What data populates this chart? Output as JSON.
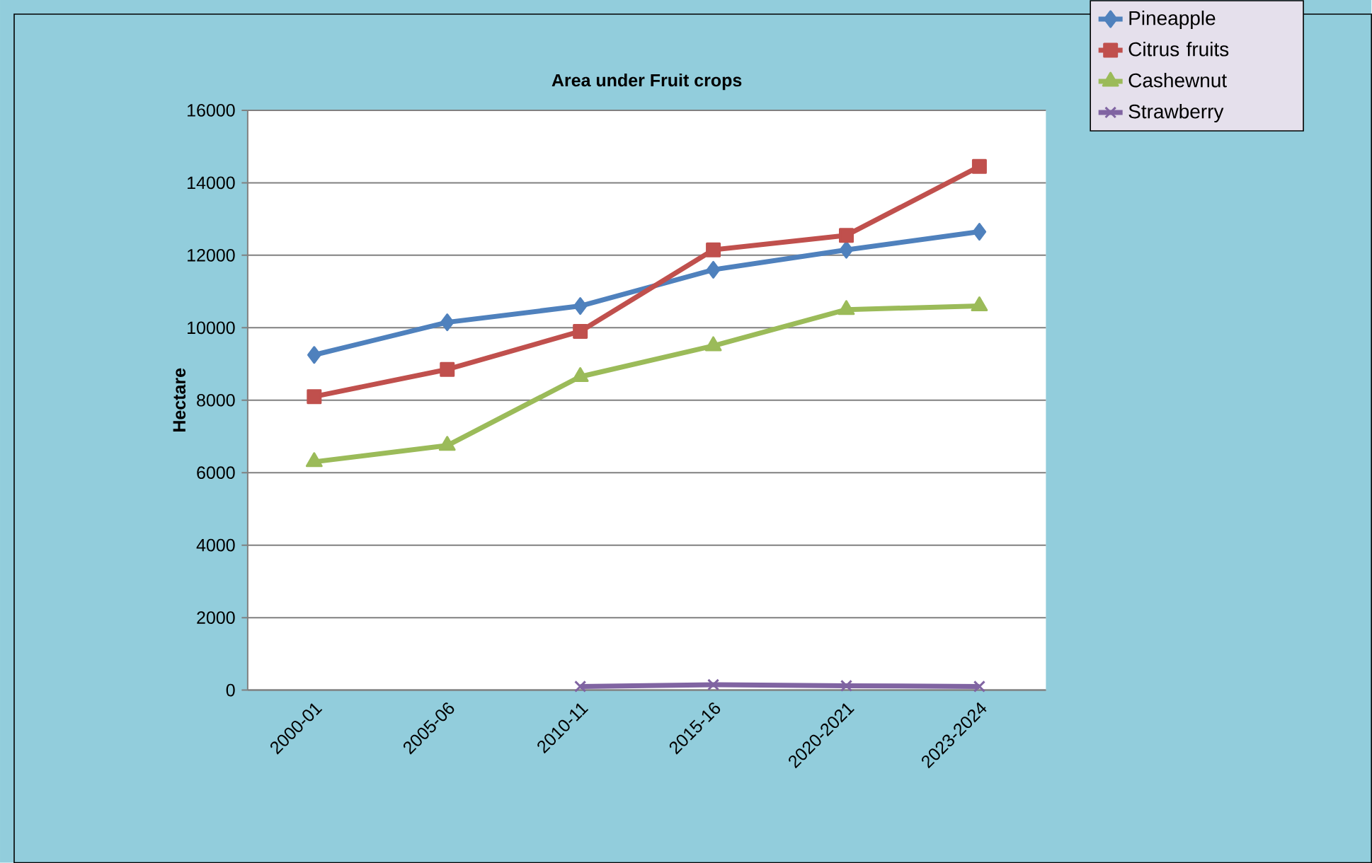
{
  "chart_data": {
    "type": "line",
    "title": "Area under Fruit crops",
    "ylabel": "Hectare",
    "categories": [
      "2000-01",
      "2005-06",
      "2010-11",
      "2015-16",
      "2020-2021",
      "2023-2024"
    ],
    "series": [
      {
        "name": "Pineapple",
        "color": "#4f81bd",
        "marker": "diamond",
        "values": [
          9250,
          10150,
          10600,
          11600,
          12150,
          12650
        ]
      },
      {
        "name": "Citrus fruits",
        "color": "#c0504d",
        "marker": "square",
        "values": [
          8100,
          8850,
          9900,
          12150,
          12550,
          14450
        ]
      },
      {
        "name": "Cashewnut",
        "color": "#9bbb59",
        "marker": "triangle",
        "values": [
          6300,
          6750,
          8650,
          9500,
          10500,
          10600
        ]
      },
      {
        "name": "Strawberry",
        "color": "#8064a2",
        "marker": "cross",
        "values": [
          null,
          null,
          100,
          150,
          120,
          100
        ]
      }
    ],
    "ylim": [
      0,
      16000
    ],
    "yticks": [
      0,
      2000,
      4000,
      6000,
      8000,
      10000,
      12000,
      14000,
      16000
    ],
    "grid": "y",
    "legend": "top right",
    "line_style": "solid"
  }
}
